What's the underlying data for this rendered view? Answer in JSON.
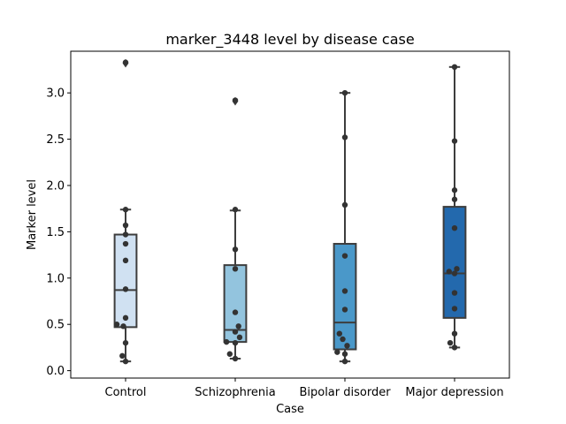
{
  "chart_data": {
    "type": "box",
    "title": "marker_3448 level by disease case",
    "xlabel": "Case",
    "ylabel": "Marker level",
    "ylim": [
      -0.08,
      3.45
    ],
    "yticks": [
      "0.0",
      "0.5",
      "1.0",
      "1.5",
      "2.0",
      "2.5",
      "3.0"
    ],
    "grid": false,
    "legend": "none",
    "categories": [
      "Control",
      "Schizophrenia",
      "Bipolar disorder",
      "Major depression"
    ],
    "colors": [
      "#d0e1f2",
      "#93c4de",
      "#4a98c9",
      "#2369ad"
    ],
    "boxes": [
      {
        "q1": 0.47,
        "median": 0.87,
        "q3": 1.47,
        "whisker_low": 0.1,
        "whisker_high": 1.74,
        "outliers": [
          3.32
        ]
      },
      {
        "q1": 0.31,
        "median": 0.44,
        "q3": 1.14,
        "whisker_low": 0.13,
        "whisker_high": 1.73,
        "outliers": [
          2.91
        ]
      },
      {
        "q1": 0.23,
        "median": 0.52,
        "q3": 1.37,
        "whisker_low": 0.1,
        "whisker_high": 3.0,
        "outliers": []
      },
      {
        "q1": 0.57,
        "median": 1.05,
        "q3": 1.77,
        "whisker_low": 0.25,
        "whisker_high": 3.28,
        "outliers": []
      }
    ],
    "points": [
      [
        {
          "x": -0.08,
          "y": 0.5
        },
        {
          "x": -0.02,
          "y": 0.48
        },
        {
          "x": 0.0,
          "y": 3.33
        },
        {
          "x": 0.0,
          "y": 1.74
        },
        {
          "x": 0.0,
          "y": 1.57
        },
        {
          "x": 0.0,
          "y": 1.47
        },
        {
          "x": 0.0,
          "y": 1.37
        },
        {
          "x": 0.0,
          "y": 1.19
        },
        {
          "x": 0.0,
          "y": 0.88
        },
        {
          "x": 0.0,
          "y": 0.57
        },
        {
          "x": 0.0,
          "y": 0.3
        },
        {
          "x": -0.03,
          "y": 0.16
        },
        {
          "x": 0.0,
          "y": 0.1
        }
      ],
      [
        {
          "x": 0.0,
          "y": 2.92
        },
        {
          "x": 0.0,
          "y": 1.74
        },
        {
          "x": 0.0,
          "y": 1.31
        },
        {
          "x": 0.0,
          "y": 1.1
        },
        {
          "x": 0.0,
          "y": 0.63
        },
        {
          "x": 0.03,
          "y": 0.48
        },
        {
          "x": 0.0,
          "y": 0.42
        },
        {
          "x": 0.04,
          "y": 0.36
        },
        {
          "x": -0.08,
          "y": 0.31
        },
        {
          "x": 0.0,
          "y": 0.3
        },
        {
          "x": -0.05,
          "y": 0.18
        },
        {
          "x": 0.0,
          "y": 0.13
        }
      ],
      [
        {
          "x": 0.0,
          "y": 3.0
        },
        {
          "x": 0.0,
          "y": 2.52
        },
        {
          "x": 0.0,
          "y": 1.79
        },
        {
          "x": 0.0,
          "y": 1.24
        },
        {
          "x": 0.0,
          "y": 0.86
        },
        {
          "x": 0.0,
          "y": 0.66
        },
        {
          "x": -0.05,
          "y": 0.4
        },
        {
          "x": -0.02,
          "y": 0.34
        },
        {
          "x": 0.02,
          "y": 0.27
        },
        {
          "x": -0.07,
          "y": 0.2
        },
        {
          "x": 0.0,
          "y": 0.18
        },
        {
          "x": 0.0,
          "y": 0.1
        }
      ],
      [
        {
          "x": 0.0,
          "y": 3.28
        },
        {
          "x": 0.0,
          "y": 2.48
        },
        {
          "x": 0.0,
          "y": 1.95
        },
        {
          "x": 0.0,
          "y": 1.85
        },
        {
          "x": 0.0,
          "y": 1.54
        },
        {
          "x": 0.02,
          "y": 1.1
        },
        {
          "x": -0.05,
          "y": 1.07
        },
        {
          "x": 0.0,
          "y": 1.05
        },
        {
          "x": 0.0,
          "y": 0.84
        },
        {
          "x": 0.0,
          "y": 0.67
        },
        {
          "x": 0.0,
          "y": 0.4
        },
        {
          "x": -0.04,
          "y": 0.3
        },
        {
          "x": 0.0,
          "y": 0.25
        }
      ]
    ]
  }
}
